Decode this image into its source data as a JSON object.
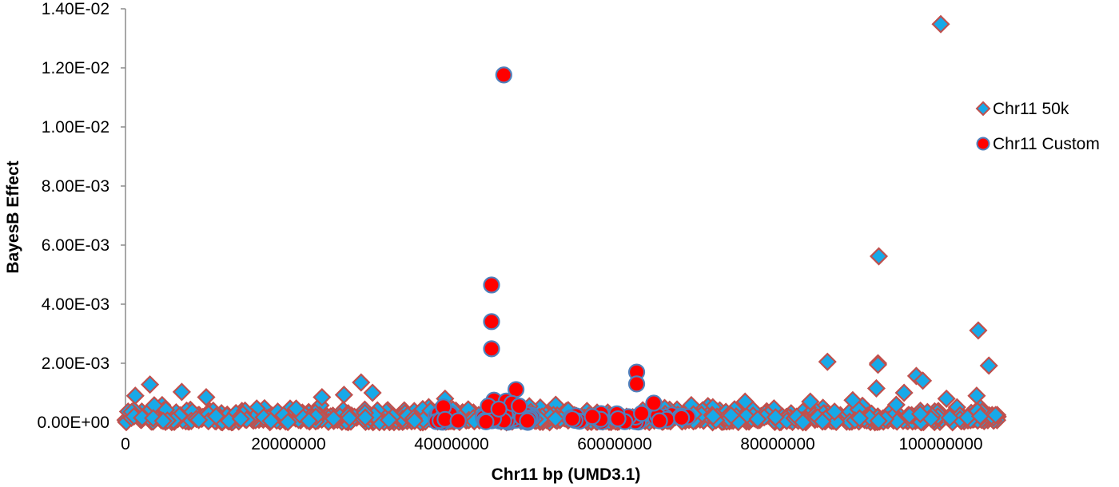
{
  "chart_data": {
    "type": "scatter",
    "title": "",
    "xlabel": "Chr11 bp (UMD3.1)",
    "ylabel": "BayesB Effect",
    "xlim": [
      0,
      107000000
    ],
    "ylim": [
      0,
      0.014
    ],
    "grid": false,
    "legend_position": "right",
    "x_ticks": [
      0,
      20000000,
      40000000,
      60000000,
      80000000,
      100000000
    ],
    "x_tick_labels": [
      "0",
      "20000000",
      "40000000",
      "60000000",
      "80000000",
      "100000000"
    ],
    "y_ticks": [
      0,
      0.002,
      0.004,
      0.006,
      0.008,
      0.01,
      0.012,
      0.014
    ],
    "y_tick_labels": [
      "0.00E+00",
      "2.00E-03",
      "4.00E-03",
      "6.00E-03",
      "8.00E-03",
      "1.00E-02",
      "1.20E-02",
      "1.40E-02"
    ],
    "series": [
      {
        "name": "Chr11 50k",
        "marker": "diamond",
        "fill": "#17A9E8",
        "stroke": "#C0504D",
        "notable_points": [
          {
            "x": 100000000,
            "y": 0.01348
          },
          {
            "x": 92400000,
            "y": 0.00562
          },
          {
            "x": 104600000,
            "y": 0.00311
          },
          {
            "x": 86100000,
            "y": 0.00205
          },
          {
            "x": 92300000,
            "y": 0.002
          },
          {
            "x": 92300000,
            "y": 0.00195
          },
          {
            "x": 105900000,
            "y": 0.00192
          },
          {
            "x": 97000000,
            "y": 0.00157
          },
          {
            "x": 97800000,
            "y": 0.00141
          },
          {
            "x": 28900000,
            "y": 0.00135
          },
          {
            "x": 3000000,
            "y": 0.00128
          },
          {
            "x": 92100000,
            "y": 0.00115
          },
          {
            "x": 6900000,
            "y": 0.00103
          },
          {
            "x": 30300000,
            "y": 0.001
          },
          {
            "x": 95500000,
            "y": 0.001
          },
          {
            "x": 26800000,
            "y": 0.00093
          },
          {
            "x": 1200000,
            "y": 0.0009
          },
          {
            "x": 104400000,
            "y": 0.0009
          },
          {
            "x": 9900000,
            "y": 0.00085
          },
          {
            "x": 24100000,
            "y": 0.00085
          },
          {
            "x": 39200000,
            "y": 0.0008
          },
          {
            "x": 100700000,
            "y": 0.0008
          },
          {
            "x": 89200000,
            "y": 0.00075
          },
          {
            "x": 76000000,
            "y": 0.0007
          },
          {
            "x": 84000000,
            "y": 0.0007
          }
        ],
        "baseline_band": {
          "x_range": [
            0,
            107000000
          ],
          "y_range": [
            0,
            0.0006
          ],
          "note": "dense cluster of points along baseline across entire chromosome"
        }
      },
      {
        "name": "Chr11 Custom",
        "marker": "circle",
        "fill": "#FF0000",
        "stroke": "#4F81BD",
        "notable_points": [
          {
            "x": 46400000,
            "y": 0.01176
          },
          {
            "x": 44900000,
            "y": 0.00465
          },
          {
            "x": 44900000,
            "y": 0.00341
          },
          {
            "x": 44900000,
            "y": 0.00249
          },
          {
            "x": 62700000,
            "y": 0.0017
          },
          {
            "x": 62700000,
            "y": 0.0013
          },
          {
            "x": 47900000,
            "y": 0.00111
          },
          {
            "x": 45200000,
            "y": 0.00075
          },
          {
            "x": 46700000,
            "y": 0.00072
          },
          {
            "x": 47400000,
            "y": 0.00064
          },
          {
            "x": 48300000,
            "y": 0.00055
          },
          {
            "x": 39000000,
            "y": 0.00052
          },
          {
            "x": 64800000,
            "y": 0.00065
          },
          {
            "x": 63300000,
            "y": 0.0003
          },
          {
            "x": 44500000,
            "y": 0.00055
          },
          {
            "x": 45800000,
            "y": 0.00045
          },
          {
            "x": 39200000,
            "y": 0.0001
          },
          {
            "x": 40800000,
            "y": 5e-05
          },
          {
            "x": 49300000,
            "y": 5e-05
          },
          {
            "x": 54800000,
            "y": 0.00012
          },
          {
            "x": 60400000,
            "y": 0.00012
          },
          {
            "x": 66400000,
            "y": 0.0001
          },
          {
            "x": 68200000,
            "y": 0.00015
          },
          {
            "x": 65500000,
            "y": 5e-05
          }
        ],
        "cluster_ranges": [
          [
            38000000,
            50000000
          ],
          [
            54000000,
            69000000
          ]
        ]
      }
    ]
  },
  "legend": {
    "items": [
      {
        "label": "Chr11 50k",
        "marker": "diamond"
      },
      {
        "label": "Chr11 Custom",
        "marker": "circle"
      }
    ]
  },
  "colors": {
    "diamond_fill": "#17A9E8",
    "diamond_stroke": "#C0504D",
    "circle_fill": "#FF0000",
    "circle_stroke": "#4F81BD",
    "axis": "#8C8C8C"
  }
}
